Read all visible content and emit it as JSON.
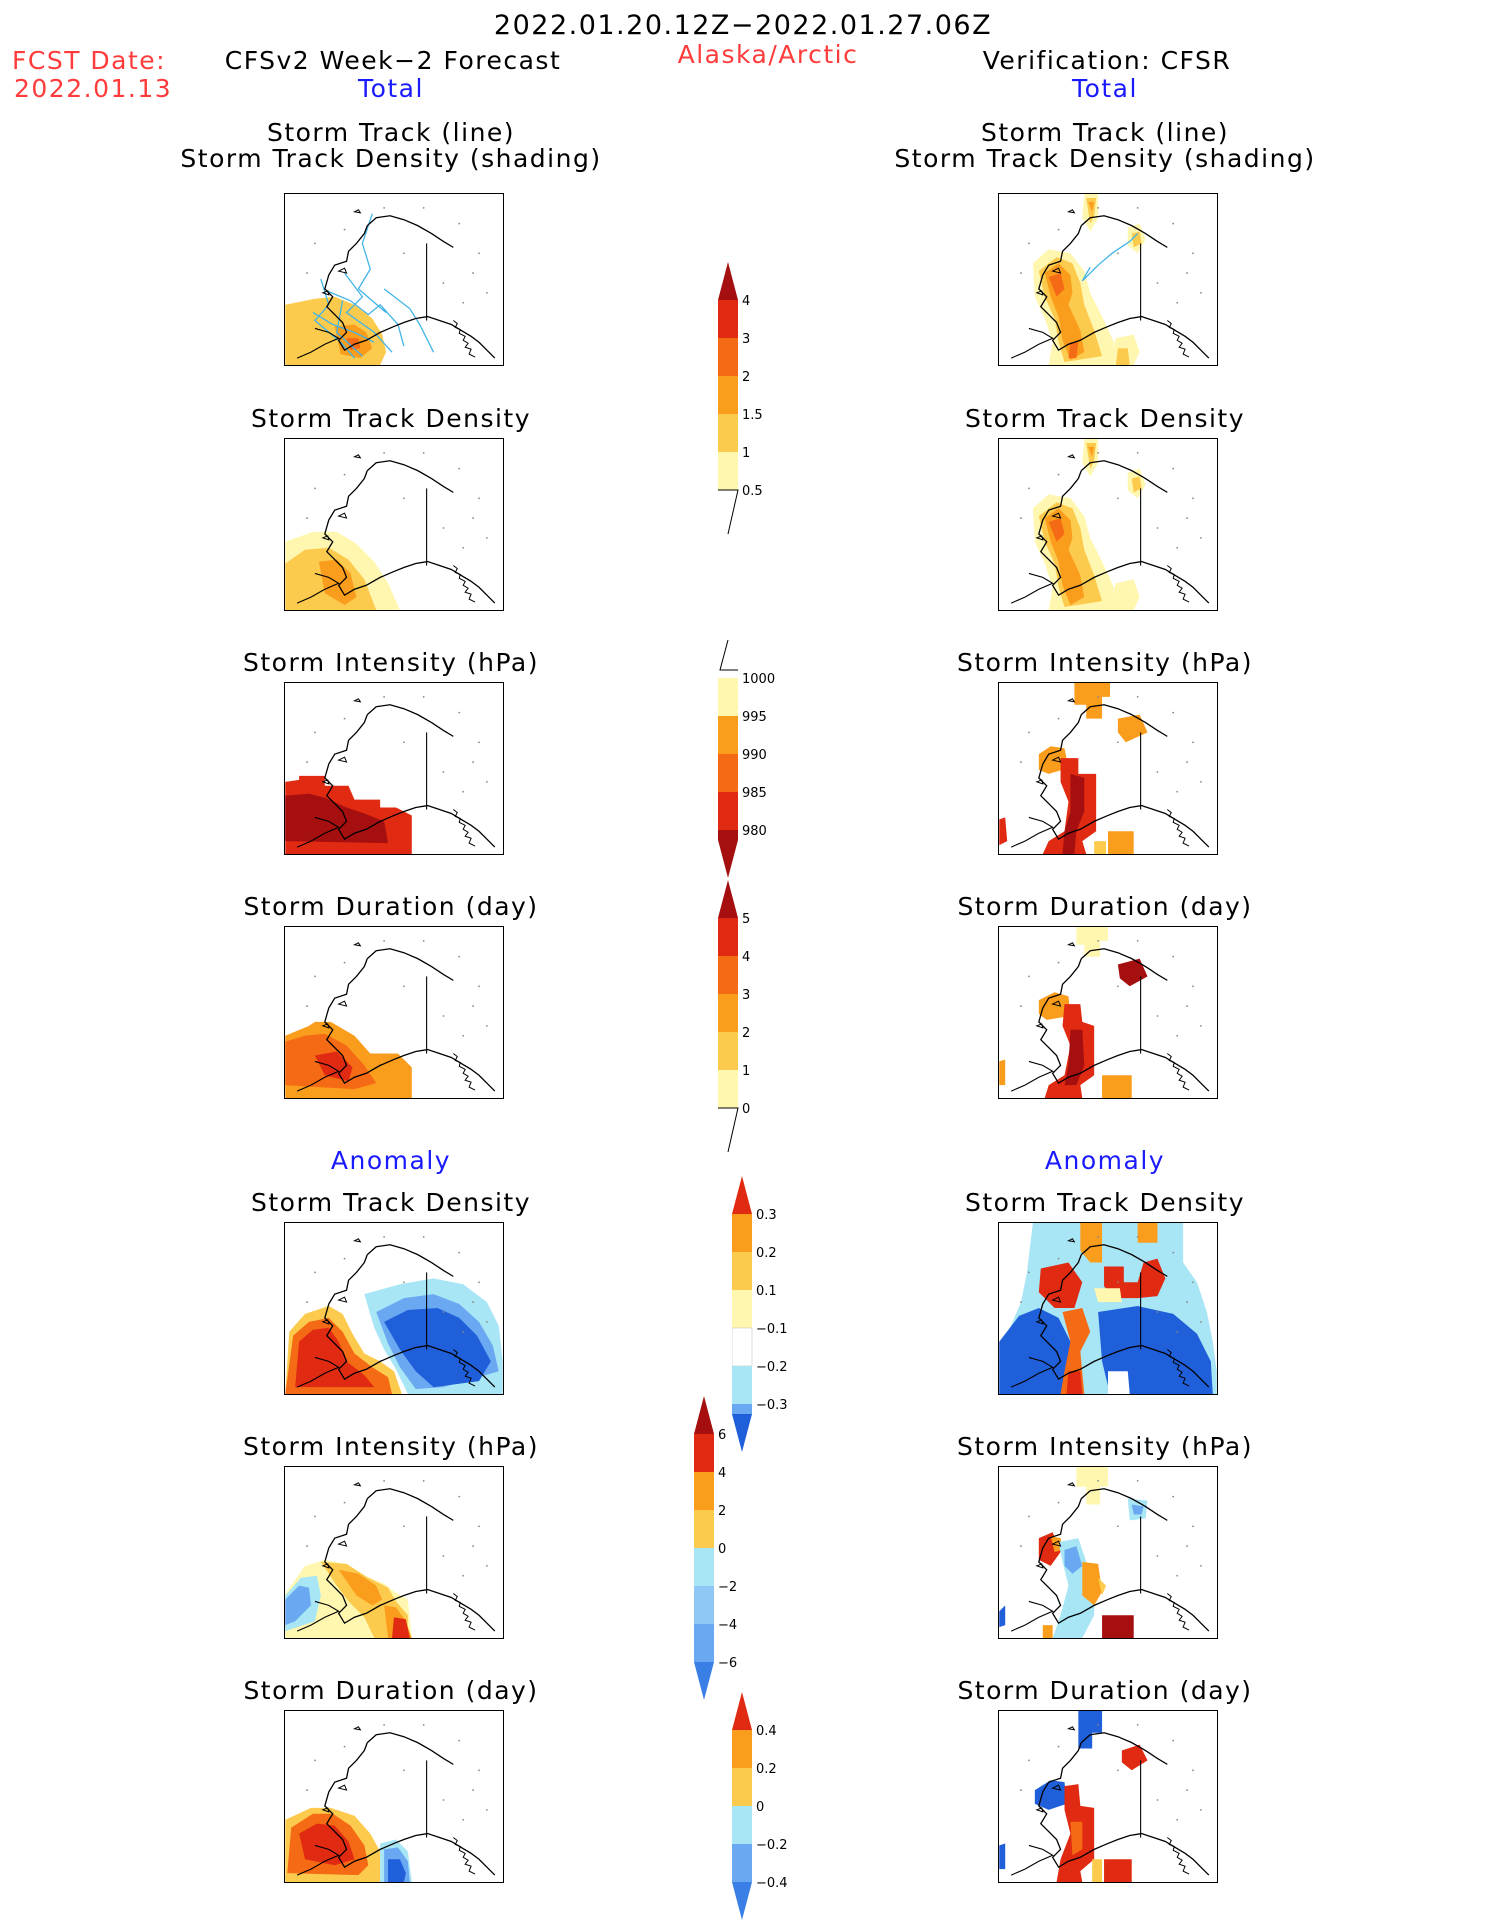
{
  "header": {
    "period": "2022.01.20.12Z−2022.01.27.06Z",
    "region": "Alaska/Arctic",
    "fcst_label": "FCST Date:",
    "fcst_date": "2022.01.13",
    "left_title": "CFSv2 Week−2 Forecast",
    "right_title": "Verification: CFSR",
    "left_total": "Total",
    "right_total": "Total"
  },
  "sections": {
    "anomaly_left": "Anomaly",
    "anomaly_right": "Anomaly"
  },
  "panel_titles": {
    "track_line": "Storm Track (line)",
    "track_density_shading": "Storm Track Density (shading)",
    "track_density": "Storm Track Density",
    "intensity": "Storm Intensity (hPa)",
    "duration": "Storm Duration (day)"
  },
  "colors": {
    "pale_yellow": "#fff7b0",
    "light_orange": "#fccb4e",
    "orange": "#fa9c1c",
    "dark_orange": "#f56a14",
    "red": "#e02a12",
    "dark_red": "#a50f0f",
    "light_blue": "#a8e6f5",
    "mid_blue": "#6ba8f2",
    "blue": "#1f5fd9",
    "track_line": "#40b4e6"
  },
  "colorbars": [
    {
      "id": "density",
      "ticks": [
        "4",
        "3",
        "2",
        "1.5",
        "1",
        "0.5"
      ]
    },
    {
      "id": "intensity",
      "ticks": [
        "1000",
        "995",
        "990",
        "985",
        "980"
      ]
    },
    {
      "id": "duration",
      "ticks": [
        "5",
        "4",
        "3",
        "2",
        "1",
        "0"
      ]
    },
    {
      "id": "density_anom",
      "ticks": [
        "0.3",
        "0.2",
        "0.1",
        "−0.1",
        "−0.2",
        "−0.3"
      ]
    },
    {
      "id": "intensity_anom",
      "ticks": [
        "6",
        "4",
        "2",
        "0",
        "−2",
        "−4",
        "−6"
      ]
    },
    {
      "id": "duration_anom",
      "ticks": [
        "0.4",
        "0.2",
        "0",
        "−0.2",
        "−0.4"
      ]
    }
  ]
}
